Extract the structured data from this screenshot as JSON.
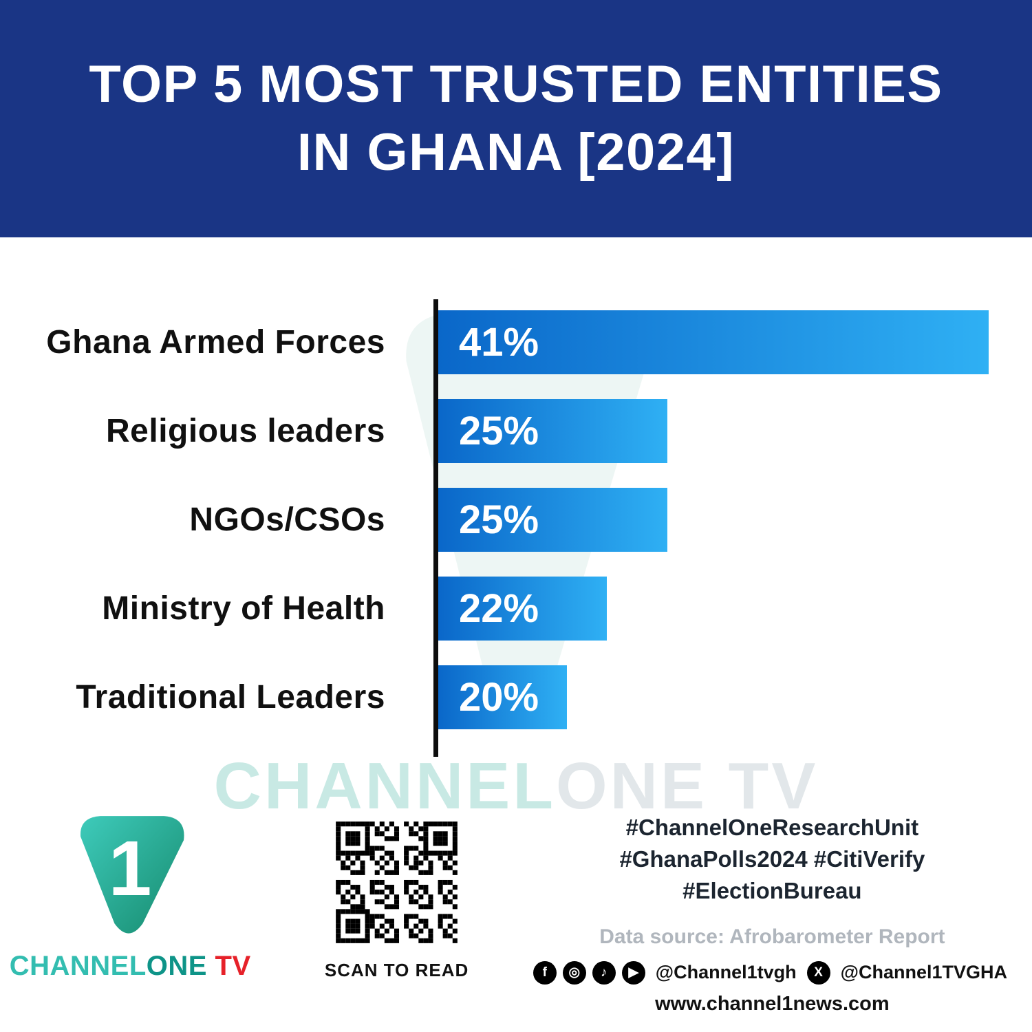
{
  "header": {
    "title_line1": "TOP 5 MOST TRUSTED ENTITIES",
    "title_line2": "IN GHANA [2024]"
  },
  "chart_data": {
    "type": "bar",
    "orientation": "horizontal",
    "title": "TOP 5 MOST TRUSTED ENTITIES IN GHANA [2024]",
    "categories": [
      "Ghana Armed Forces",
      "Religious leaders",
      "NGOs/CSOs",
      "Ministry of Health",
      "Traditional Leaders"
    ],
    "values": [
      41,
      25,
      25,
      22,
      20
    ],
    "value_suffix": "%",
    "xlabel": "",
    "ylabel": "",
    "xlim": [
      13.6,
      41
    ],
    "grid": false,
    "legend": false,
    "bar_colors": {
      "start": "#0a67c9",
      "end": "#2fb0f4"
    }
  },
  "watermark": {
    "part1": "CHANNEL",
    "part2": "ONE TV"
  },
  "icons": {
    "facebook": "f",
    "instagram": "◎",
    "tiktok": "♪",
    "youtube": "▶",
    "x": "X"
  },
  "footer": {
    "logo": {
      "numeral": "1",
      "brand_channel": "CHANNEL",
      "brand_one": "ONE",
      "brand_tv": " TV"
    },
    "qr_caption": "SCAN TO READ",
    "hashtags_line1": "#ChannelOneResearchUnit",
    "hashtags_line2": "#GhanaPolls2024 #CitiVerify",
    "hashtags_line3": "#ElectionBureau",
    "data_source": "Data source: Afrobarometer Report",
    "social_handle1": "@Channel1tvgh",
    "social_handle2": "@Channel1TVGHA",
    "website": "www.channel1news.com"
  },
  "colors": {
    "header_bg": "#1a3585",
    "bar_gradient_start": "#0a67c9",
    "bar_gradient_end": "#2fb0f4",
    "brand_teal": "#33bdb0",
    "brand_red": "#e62129"
  }
}
